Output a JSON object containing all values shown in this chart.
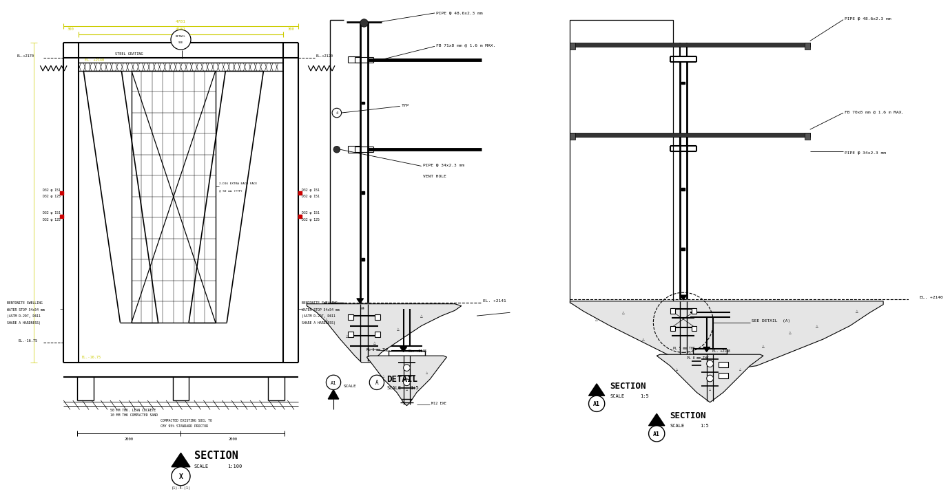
{
  "bg_color": "#ffffff",
  "lc": "#000000",
  "yc": "#cccc00",
  "rc": "#cc0000",
  "pipe_top_label": "PIPE φ 48.6x2.3 mm",
  "fb_label": "FB 71x8 mm @ 1.6 m MAX.",
  "fb_label2": "FB 70x8 mm @ 1.6 m MAX.",
  "pipe_mid_label": "PIPE φ 34x2.3 mm",
  "pipe_mid_label2": "PIPE φ 34x2.3 mm",
  "vent_hole_label": "VENT HOLE",
  "typ_label": "TYP",
  "el_label1": "EL. +2141",
  "el_label2": "EL. +2140",
  "see_detail_label": "SEE DETAIL  (A)",
  "steel_grating_label": "STEEL GRATING",
  "section_label": "SECTION",
  "section_scale_text": "SCALE",
  "section_scale_num": "1:100",
  "section_id": "X",
  "section_ref": "(1)-5-(1)",
  "detail_label": "DETAIL",
  "detail_scale_text": "SCALE",
  "detail_scale_num": "1:5",
  "detail_id": "A",
  "section_a1_label": "SECTION",
  "section_a1_scale_text": "SCALE",
  "section_a1_scale_num": "1:5",
  "section_a1_id": "A1",
  "dim_4781": "4781",
  "dim_4181": "4181",
  "dim_300a": "300",
  "dim_300b": "300",
  "dim_2000a": "2000",
  "dim_2000b": "2000",
  "el_2170": "EL.+2170",
  "el_2120": "EL.+2120",
  "el_16_75": "EL.-16.75",
  "el_2140_inner": "EL. +2140",
  "label_rebar_l1": "D32 φ 151",
  "label_rebar_l2": "D32 φ 125",
  "label_rebar_l3": "D32 φ 151",
  "label_rebar_l4": "D32 φ 125",
  "label_rebar_r1": "D32 φ 151",
  "label_rebar_r2": "D32 φ 151",
  "label_rebar_r3": "D32 φ 151",
  "label_rebar_r4": "D32 φ 125",
  "label_steel_grating": "STEEL GRATING",
  "label_bentonite_l": "BENTONITE SWELLING",
  "label_bentonite_l2": "WATER STOP 54x54 mm",
  "label_bentonite_l3": "(ASTM D-297, D611",
  "label_bentonite_l4": "SHARE A HARDNESS)",
  "label_bentonite_r": "BENTONITE SWELLING",
  "label_bentonite_r2": "WATER STOP 54x54 mm",
  "label_bentonite_r3": "(ASTM D-297, D611",
  "label_bentonite_r4": "SHARE A HARDNESS)",
  "label_lean": "50 MM THK. LEAN COCRETE",
  "label_sand": "10 MM THK COMPACTED SAND",
  "label_soil": "COMPACTED EXISTING SOIL TO",
  "label_soil2": "CBY 95% STANDARD PROCTOR",
  "label_rebar_extra": "2-D16 EXTRA EACH FACE",
  "label_rebar_extra2": "@ 50 mm (TYP)",
  "label_detail_see": "DETAIL",
  "scale_label": "SCALE",
  "m12_label": "M12 EXE",
  "pl5_label": "PL 5 mm THK.",
  "el_2148": "EL. +2148"
}
